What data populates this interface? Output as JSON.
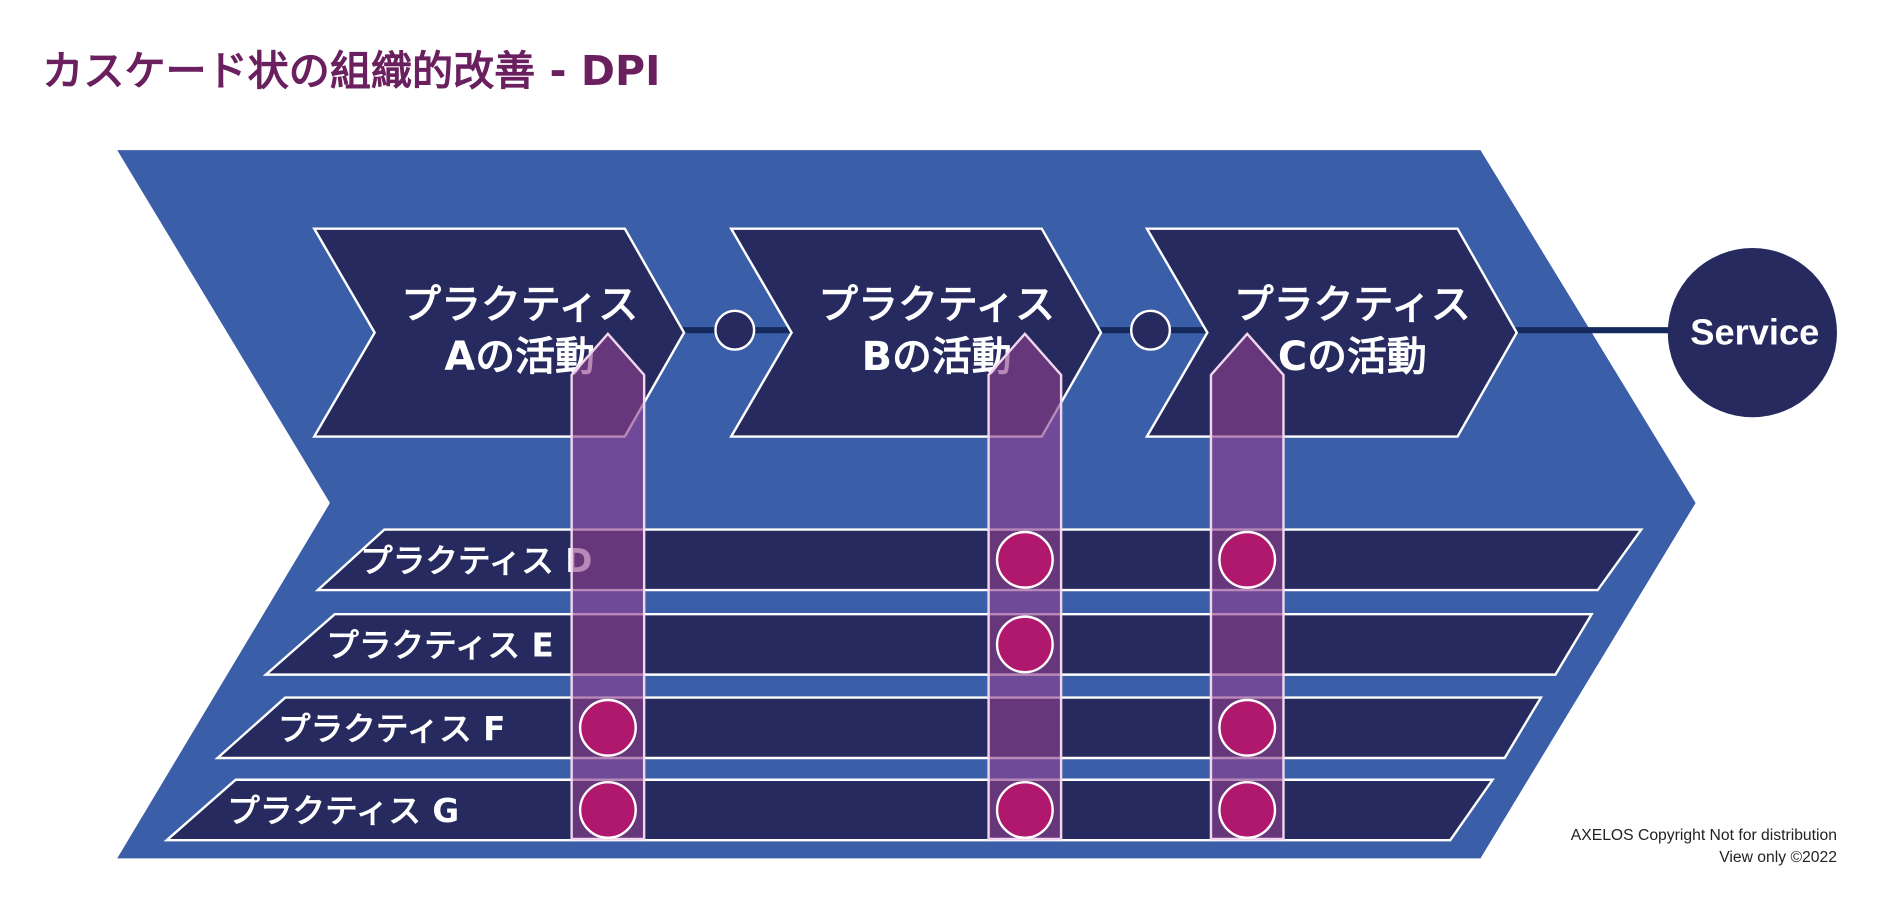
{
  "title": "カスケード状の組織的改善 - DPI",
  "activities": [
    {
      "line1": "プラクティス",
      "line2": "Aの活動"
    },
    {
      "line1": "プラクティス",
      "line2": "Bの活動"
    },
    {
      "line1": "プラクティス",
      "line2": "Cの活動"
    }
  ],
  "service": "Service",
  "practices": [
    {
      "label": "プラクティス D",
      "involved": [
        false,
        true,
        true
      ]
    },
    {
      "label": "プラクティス E",
      "involved": [
        false,
        true,
        false
      ]
    },
    {
      "label": "プラクティス F",
      "involved": [
        true,
        false,
        true
      ]
    },
    {
      "label": "プラクティス G",
      "involved": [
        true,
        true,
        true
      ]
    }
  ],
  "copyright": {
    "line1": "AXELOS Copyright  Not for distribution",
    "line2": "View only ©2022"
  },
  "colors": {
    "title": "#6a1f5e",
    "big_chevron": "#3b5ea8",
    "dark_shape": "#262a5e",
    "bar": "#8e3f8e",
    "dot": "#b0186e",
    "connector": "#152a5c"
  }
}
